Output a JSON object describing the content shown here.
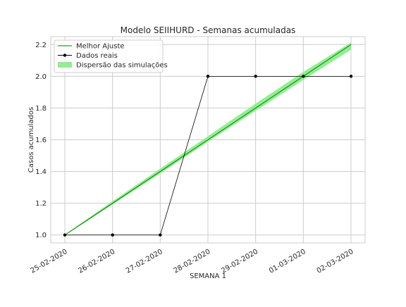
{
  "chart_data": {
    "type": "line",
    "title": "Modelo SEIIHURD - Semanas acumuladas",
    "xlabel": "SEMANA 1",
    "ylabel": "Casos acumulados",
    "x_categories": [
      "25-02-2020",
      "26-02-2020",
      "27-02-2020",
      "28-02-2020",
      "29-02-2020",
      "01-03-2020",
      "02-03-2020"
    ],
    "ylim": [
      0.95,
      2.25
    ],
    "yticks": [
      1.0,
      1.2,
      1.4,
      1.6,
      1.8,
      2.0,
      2.2
    ],
    "ytick_labels": [
      "1.0",
      "1.2",
      "1.4",
      "1.6",
      "1.8",
      "2.0",
      "2.2"
    ],
    "grid": true,
    "legend_position": "upper-left",
    "series": [
      {
        "name": "Melhor Ajuste",
        "kind": "line",
        "color": "#008000",
        "values": [
          1.0,
          1.2,
          1.4,
          1.6,
          1.8,
          2.0,
          2.2
        ]
      },
      {
        "name": "Dados reais",
        "kind": "line-markers",
        "color": "#000000",
        "values": [
          1.0,
          1.0,
          1.0,
          2.0,
          2.0,
          2.0,
          2.0
        ]
      },
      {
        "name": "Dispersão das simulações",
        "kind": "band",
        "color": "#90ee90",
        "lower": [
          1.0,
          1.195,
          1.39,
          1.59,
          1.785,
          1.98,
          2.17
        ],
        "upper": [
          1.0,
          1.21,
          1.415,
          1.62,
          1.825,
          2.025,
          2.21
        ]
      }
    ]
  }
}
